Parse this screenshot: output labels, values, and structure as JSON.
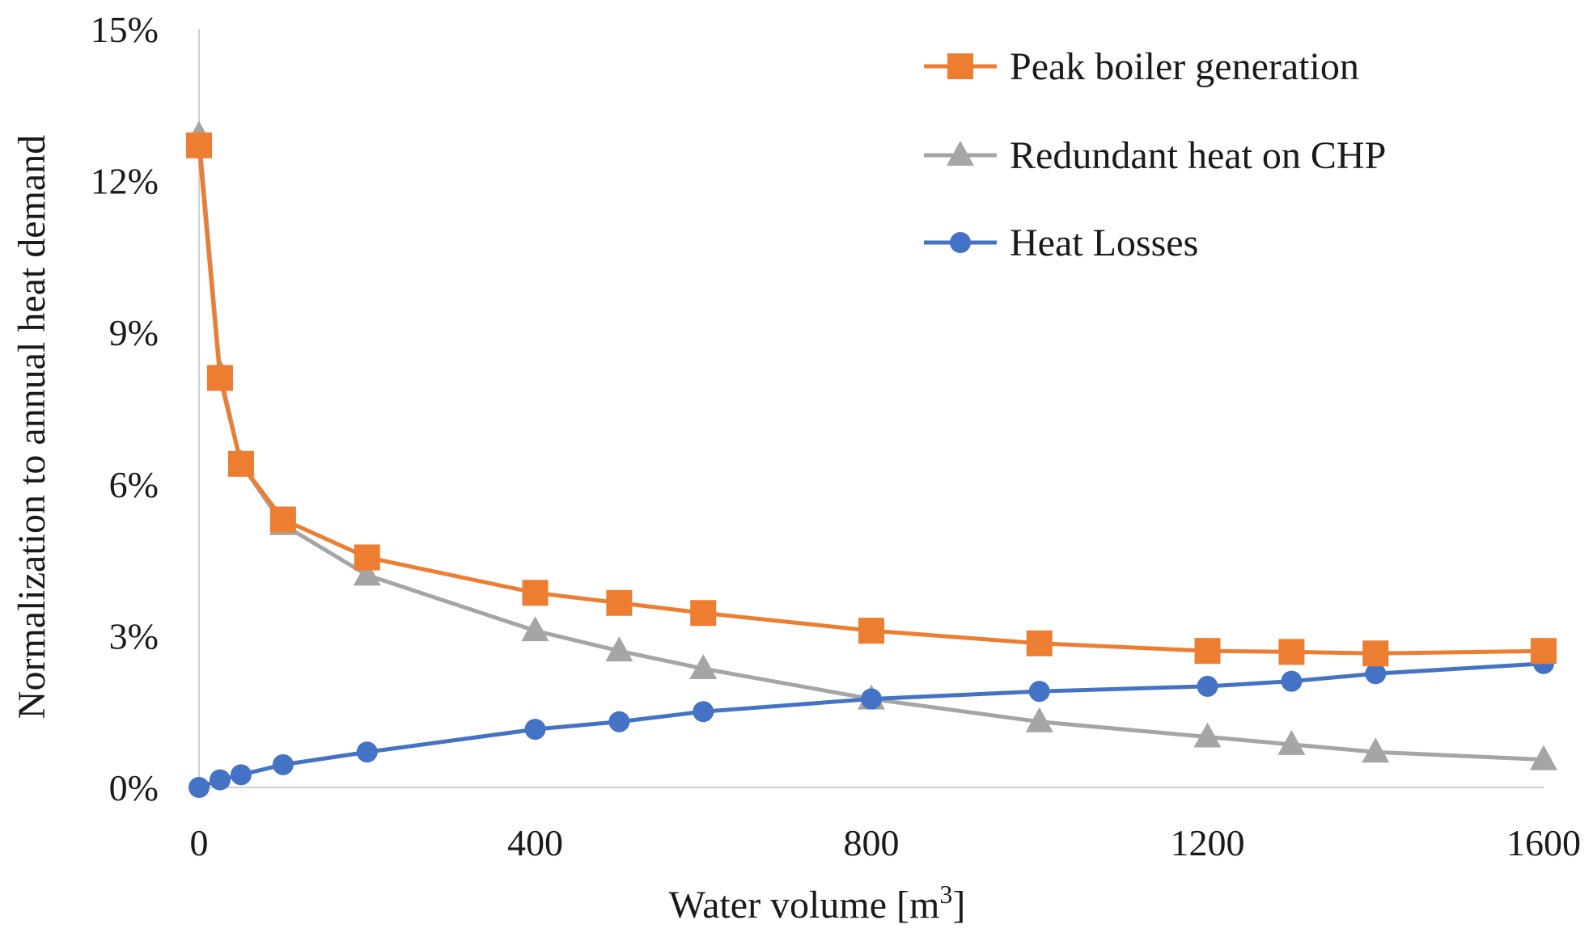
{
  "chart_data": {
    "type": "line",
    "xlabel": "Water volume [m",
    "xlabel_sup": "3",
    "xlabel_end": "]",
    "ylabel": "Normalization to annual heat demand",
    "xlim": [
      0,
      1600
    ],
    "ylim": [
      0,
      15
    ],
    "x_ticks": [
      0,
      400,
      800,
      1200,
      1600
    ],
    "x_tick_labels": [
      "0",
      "400",
      "800",
      "1200",
      "1600"
    ],
    "y_ticks": [
      0,
      3,
      6,
      9,
      12,
      15
    ],
    "y_tick_labels": [
      "0%",
      "3%",
      "6%",
      "9%",
      "12%",
      "15%"
    ],
    "grid": false,
    "legend_position": "top-right",
    "series": [
      {
        "name": "Peak boiler generation",
        "color": "#ED7D31",
        "marker": "square",
        "x": [
          0,
          25,
          50,
          100,
          200,
          400,
          500,
          600,
          800,
          1000,
          1200,
          1300,
          1400,
          1600
        ],
        "y": [
          12.7,
          8.1,
          6.4,
          5.3,
          4.55,
          3.85,
          3.65,
          3.45,
          3.1,
          2.85,
          2.7,
          2.68,
          2.65,
          2.7
        ]
      },
      {
        "name": "Redundant heat on CHP",
        "color": "#A5A5A5",
        "marker": "triangle",
        "x": [
          0,
          25,
          50,
          100,
          200,
          400,
          500,
          600,
          800,
          1000,
          1200,
          1300,
          1400,
          1600
        ],
        "y": [
          12.9,
          8.2,
          6.4,
          5.2,
          4.2,
          3.1,
          2.7,
          2.35,
          1.75,
          1.3,
          1.0,
          0.85,
          0.7,
          0.55
        ]
      },
      {
        "name": "Heat Losses",
        "color": "#4472C4",
        "marker": "circle",
        "x": [
          0,
          25,
          50,
          100,
          200,
          400,
          500,
          600,
          800,
          1000,
          1200,
          1300,
          1400,
          1600
        ],
        "y": [
          0.0,
          0.15,
          0.25,
          0.45,
          0.7,
          1.15,
          1.3,
          1.5,
          1.75,
          1.9,
          2.0,
          2.1,
          2.25,
          2.45
        ]
      }
    ]
  }
}
